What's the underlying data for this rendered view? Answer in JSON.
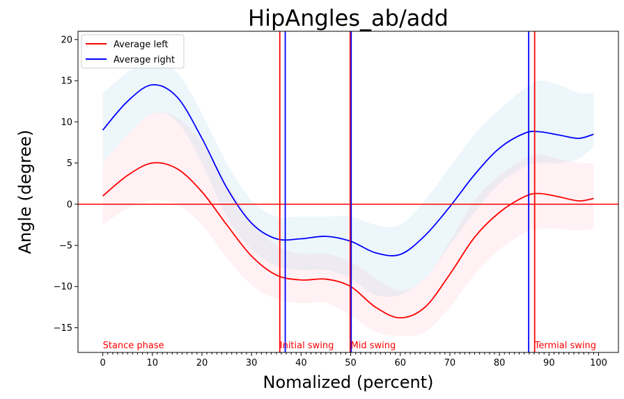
{
  "chart_data": {
    "type": "line",
    "title": "HipAngles_ab/add",
    "xlabel": "Nomalized (percent)",
    "ylabel": "Angle (degree)",
    "xlim": [
      -5,
      104
    ],
    "ylim": [
      -18,
      21
    ],
    "xticks": [
      0,
      10,
      20,
      30,
      40,
      50,
      60,
      70,
      80,
      90,
      100
    ],
    "yticks": [
      -15,
      -10,
      -5,
      0,
      5,
      10,
      15,
      20
    ],
    "legend": {
      "position": "top-left",
      "entries": [
        "Average left",
        "Average right"
      ]
    },
    "series": [
      {
        "name": "Average left",
        "color": "#ff0000",
        "band_color": "#ffc0cb",
        "x": [
          0,
          5,
          10,
          15,
          20,
          25,
          30,
          35,
          40,
          45,
          50,
          55,
          60,
          65,
          70,
          75,
          80,
          85,
          88,
          92,
          96,
          99
        ],
        "y": [
          1.0,
          3.5,
          5.0,
          4.3,
          1.5,
          -2.5,
          -6.3,
          -8.6,
          -9.2,
          -9.1,
          -10.0,
          -12.5,
          -13.8,
          -12.5,
          -8.5,
          -4.0,
          -1.0,
          0.9,
          1.3,
          0.9,
          0.4,
          0.7
        ],
        "lower": [
          -2.5,
          -0.5,
          0.5,
          0.0,
          -2.5,
          -6.5,
          -9.8,
          -11.5,
          -12.0,
          -12.0,
          -13.5,
          -15.5,
          -16.0,
          -15.5,
          -12.5,
          -8.5,
          -5.5,
          -3.5,
          -3.0,
          -3.0,
          -3.2,
          -3.0
        ],
        "upper": [
          5.0,
          8.5,
          11.0,
          10.5,
          7.5,
          2.5,
          -2.0,
          -5.0,
          -6.0,
          -6.0,
          -7.0,
          -9.0,
          -10.5,
          -9.0,
          -4.5,
          0.5,
          3.5,
          5.5,
          6.0,
          5.5,
          5.0,
          5.0
        ]
      },
      {
        "name": "Average right",
        "color": "#0000ff",
        "band_color": "#add8e6",
        "x": [
          0,
          5,
          10,
          15,
          20,
          25,
          30,
          35,
          40,
          45,
          50,
          55,
          60,
          65,
          70,
          75,
          80,
          85,
          88,
          92,
          96,
          99
        ],
        "y": [
          9.0,
          12.5,
          14.5,
          13.0,
          8.0,
          2.0,
          -2.3,
          -4.2,
          -4.2,
          -3.9,
          -4.5,
          -5.9,
          -6.1,
          -3.8,
          -0.3,
          3.6,
          6.8,
          8.6,
          8.8,
          8.4,
          8.0,
          8.5
        ],
        "lower": [
          5.0,
          8.5,
          11.0,
          10.0,
          5.0,
          -1.5,
          -5.5,
          -7.5,
          -8.0,
          -8.0,
          -9.0,
          -11.0,
          -11.0,
          -9.0,
          -5.0,
          -1.0,
          2.5,
          4.5,
          5.0,
          5.0,
          5.5,
          7.0
        ],
        "upper": [
          13.5,
          16.0,
          17.5,
          16.0,
          11.0,
          5.0,
          0.5,
          -1.5,
          -1.5,
          -1.5,
          -1.5,
          -2.5,
          -2.5,
          0.5,
          4.5,
          8.5,
          11.5,
          14.0,
          15.0,
          14.5,
          13.5,
          13.5
        ]
      }
    ],
    "hlines": [
      {
        "y": 0,
        "color": "#ff0000"
      }
    ],
    "vlines": [
      {
        "x": 35.7,
        "color": "#ff0000"
      },
      {
        "x": 36.8,
        "color": "#0000ff"
      },
      {
        "x": 49.9,
        "color": "#ff0000"
      },
      {
        "x": 50.1,
        "color": "#0000ff"
      },
      {
        "x": 85.9,
        "color": "#0000ff"
      },
      {
        "x": 87.1,
        "color": "#ff0000"
      }
    ],
    "annotations": [
      {
        "text": "Stance phase",
        "x": 0,
        "color": "#ff0000"
      },
      {
        "text": "Initial swing",
        "x": 35.7,
        "color": "#ff0000"
      },
      {
        "text": "Mid swing",
        "x": 50.0,
        "color": "#ff0000"
      },
      {
        "text": "Termial swing",
        "x": 87.1,
        "color": "#ff0000"
      }
    ]
  }
}
